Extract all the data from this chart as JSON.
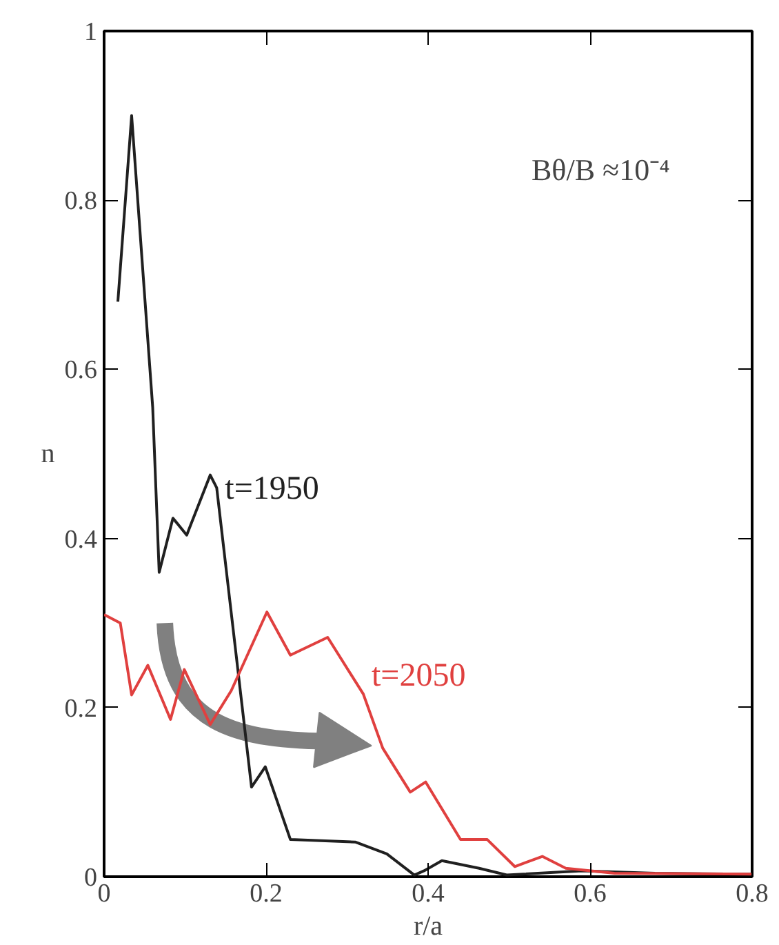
{
  "chart_data": {
    "type": "line",
    "xlabel": "r/a",
    "ylabel": "n",
    "annotations": [
      "Bθ/B ≈10⁻⁴"
    ],
    "xlim": [
      0,
      0.8
    ],
    "ylim": [
      0,
      1
    ],
    "xticks": [
      0,
      0.2,
      0.4,
      0.6,
      0.8
    ],
    "yticks": [
      0,
      0.2,
      0.4,
      0.6,
      0.8,
      1
    ],
    "grid": false,
    "legend": false,
    "marker": "none",
    "line_style": "solid",
    "series": [
      {
        "name": "t=1950",
        "color": "#202020",
        "x": [
          0.017,
          0.034,
          0.06,
          0.068,
          0.085,
          0.102,
          0.131,
          0.139,
          0.182,
          0.199,
          0.23,
          0.31,
          0.349,
          0.383,
          0.395,
          0.417,
          0.463,
          0.497,
          0.59,
          0.68,
          0.8
        ],
        "values": [
          0.68,
          0.9,
          0.555,
          0.36,
          0.424,
          0.404,
          0.475,
          0.46,
          0.106,
          0.13,
          0.044,
          0.041,
          0.027,
          0.002,
          0.007,
          0.019,
          0.01,
          0.002,
          0.007,
          0.004,
          0.003
        ]
      },
      {
        "name": "t=2050",
        "color": "#e0403f",
        "x": [
          0,
          0.02,
          0.034,
          0.054,
          0.082,
          0.099,
          0.131,
          0.157,
          0.201,
          0.23,
          0.276,
          0.32,
          0.344,
          0.378,
          0.397,
          0.44,
          0.473,
          0.507,
          0.541,
          0.57,
          0.63,
          0.8
        ],
        "values": [
          0.31,
          0.3,
          0.215,
          0.25,
          0.186,
          0.245,
          0.18,
          0.22,
          0.313,
          0.262,
          0.283,
          0.216,
          0.152,
          0.1,
          0.112,
          0.044,
          0.044,
          0.012,
          0.024,
          0.01,
          0.004,
          0.003
        ]
      }
    ]
  }
}
